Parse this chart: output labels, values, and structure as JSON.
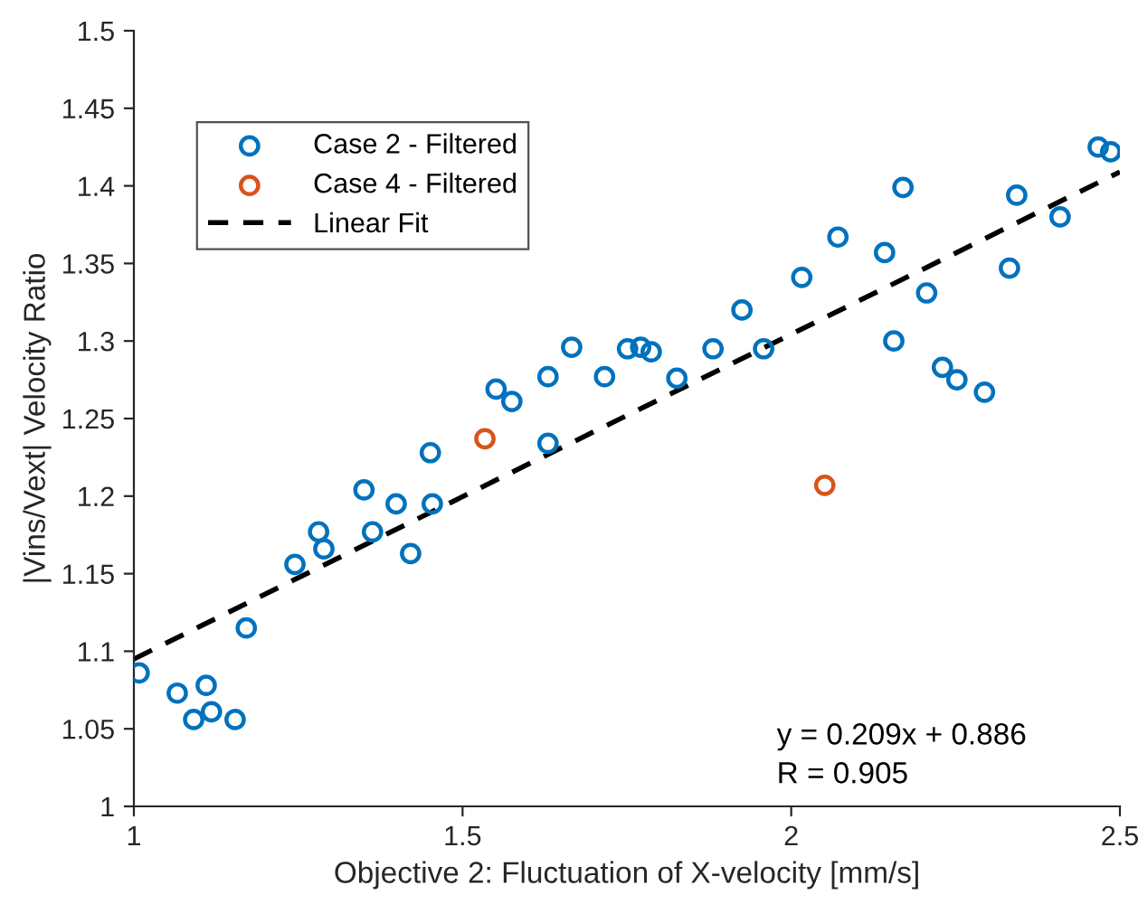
{
  "chart_data": {
    "type": "scatter",
    "xlabel": "Objective 2: Fluctuation of X-velocity [mm/s]",
    "ylabel": "|Vins/Vext| Velocity Ratio",
    "xlim": [
      1,
      2.5
    ],
    "xticks": [
      1,
      1.5,
      2,
      2.5
    ],
    "ylim": [
      1,
      1.5
    ],
    "yticks": [
      1,
      1.05,
      1.1,
      1.15,
      1.2,
      1.25,
      1.3,
      1.35,
      1.4,
      1.45,
      1.5
    ],
    "grid": false,
    "legend": "top left",
    "marker": "circle",
    "annotations": [
      "y = 0.209x + 0.886",
      "R = 0.905"
    ],
    "series": [
      {
        "name": "Case 2 - Filtered",
        "color": "#0072bd",
        "x": [
          1.008,
          1.066,
          1.091,
          1.11,
          1.118,
          1.154,
          1.171,
          1.245,
          1.281,
          1.289,
          1.35,
          1.363,
          1.399,
          1.421,
          1.451,
          1.454,
          1.551,
          1.575,
          1.63,
          1.63,
          1.666,
          1.716,
          1.751,
          1.771,
          1.787,
          1.826,
          1.881,
          1.925,
          1.958,
          2.016,
          2.071,
          2.142,
          2.17,
          2.156,
          2.206,
          2.23,
          2.252,
          2.294,
          2.332,
          2.343,
          2.409,
          2.467,
          2.486
        ],
        "values": [
          1.086,
          1.073,
          1.056,
          1.078,
          1.061,
          1.056,
          1.115,
          1.156,
          1.177,
          1.166,
          1.204,
          1.177,
          1.195,
          1.163,
          1.228,
          1.195,
          1.269,
          1.261,
          1.234,
          1.277,
          1.296,
          1.277,
          1.295,
          1.296,
          1.293,
          1.276,
          1.295,
          1.32,
          1.295,
          1.341,
          1.367,
          1.357,
          1.399,
          1.3,
          1.331,
          1.283,
          1.275,
          1.267,
          1.347,
          1.394,
          1.38,
          1.425,
          1.422
        ]
      },
      {
        "name": "Case 4 - Filtered",
        "color": "#d95319",
        "x": [
          1.534,
          2.051
        ],
        "values": [
          1.237,
          1.207
        ]
      },
      {
        "name": "Linear Fit",
        "type": "line",
        "color": "#000000",
        "line_style": "dashed",
        "marker": "none",
        "x": [
          1,
          2.5
        ],
        "values": [
          1.095,
          1.409
        ]
      }
    ]
  }
}
